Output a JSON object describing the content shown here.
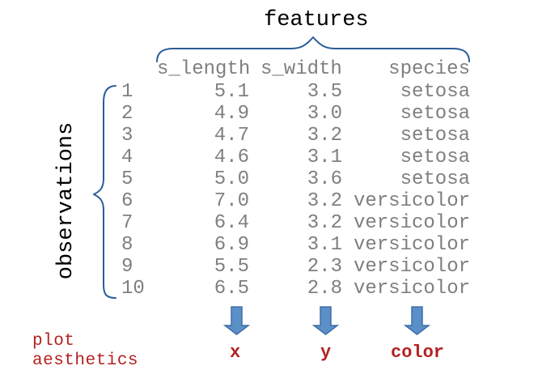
{
  "title": "features",
  "side_label": "observations",
  "colors": {
    "text": "#000000",
    "table_text": "#7f7f7f",
    "brace": "#2b5c99",
    "arrow_fill": "#5b8fc8",
    "arrow_stroke": "#3f6ea8",
    "aesthetics": "#b22222"
  },
  "table": {
    "headers": [
      "s_length",
      "s_width",
      "species"
    ],
    "rows": [
      [
        "1",
        "5.1",
        "3.5",
        "setosa"
      ],
      [
        "2",
        "4.9",
        "3.0",
        "setosa"
      ],
      [
        "3",
        "4.7",
        "3.2",
        "setosa"
      ],
      [
        "4",
        "4.6",
        "3.1",
        "setosa"
      ],
      [
        "5",
        "5.0",
        "3.6",
        "setosa"
      ],
      [
        "6",
        "7.0",
        "3.2",
        "versicolor"
      ],
      [
        "7",
        "6.4",
        "3.2",
        "versicolor"
      ],
      [
        "8",
        "6.9",
        "3.1",
        "versicolor"
      ],
      [
        "9",
        "5.5",
        "2.3",
        "versicolor"
      ],
      [
        "10",
        "6.5",
        "2.8",
        "versicolor"
      ]
    ]
  },
  "aesthetics": {
    "label_line_1": "plot",
    "label_line_2": "aesthetics",
    "mappings": [
      "x",
      "y",
      "color"
    ]
  }
}
